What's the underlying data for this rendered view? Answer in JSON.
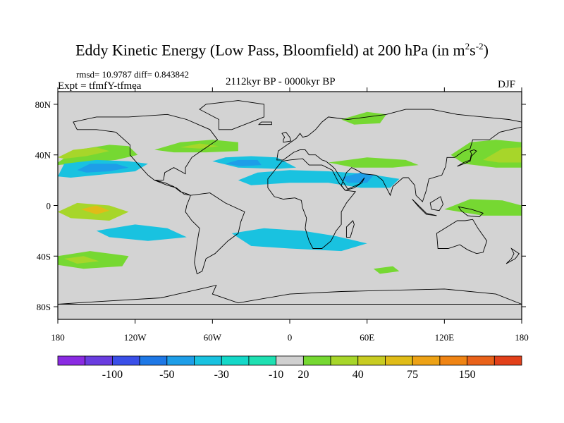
{
  "title": {
    "main": "Eddy Kinetic Energy (Low Pass, Bloomfield) at 200 hPa (in m",
    "unit_exp1": "2",
    "unit_mid": "s",
    "unit_exp2": "-2",
    "close": ")"
  },
  "stats": "rmsd= 10.9787 diff= 0.843842",
  "experiment": "Expt = tfmfY-tfmea",
  "period": "2112kyr BP - 0000kyr BP",
  "season": "DJF",
  "colors": {
    "background_field": "#d3d3d3",
    "land_outline": "#000000",
    "plot_border": "#000000"
  },
  "chart_data": {
    "type": "heatmap",
    "projection": "cylindrical equidistant",
    "variable": "Eddy Kinetic Energy difference",
    "xlim": [
      -180,
      180
    ],
    "ylim": [
      -90,
      90
    ],
    "x_ticks": [
      {
        "value": -180,
        "label": "180"
      },
      {
        "value": -120,
        "label": "120W"
      },
      {
        "value": -60,
        "label": "60W"
      },
      {
        "value": 0,
        "label": "0"
      },
      {
        "value": 60,
        "label": "60E"
      },
      {
        "value": 120,
        "label": "120E"
      },
      {
        "value": 180,
        "label": "180"
      }
    ],
    "y_ticks": [
      {
        "value": 80,
        "label": "80N"
      },
      {
        "value": 40,
        "label": "40N"
      },
      {
        "value": 0,
        "label": "0"
      },
      {
        "value": -40,
        "label": "40S"
      },
      {
        "value": -80,
        "label": "80S"
      }
    ],
    "colorbar": {
      "colors": [
        "#8a2be2",
        "#6a3de0",
        "#3a4fe8",
        "#1e78e6",
        "#1e9ee8",
        "#19c2e0",
        "#14d8c8",
        "#1fe0b2",
        "#d0d0d0",
        "#76d832",
        "#a7d62a",
        "#c8cc22",
        "#e0bc18",
        "#eda216",
        "#ef8414",
        "#e9621a",
        "#e2401a"
      ],
      "labels": [
        {
          "boundary": 2,
          "text": "-100"
        },
        {
          "boundary": 4,
          "text": "-50"
        },
        {
          "boundary": 6,
          "text": "-30"
        },
        {
          "boundary": 8,
          "text": "-10"
        },
        {
          "boundary": 9,
          "text": "20"
        },
        {
          "boundary": 11,
          "text": "40"
        },
        {
          "boundary": 13,
          "text": "75"
        },
        {
          "boundary": 15,
          "text": "150"
        }
      ]
    },
    "regions": [
      {
        "name": "north-pacific-positive",
        "color": "#76d832",
        "lon": [
          [
            -180,
            34
          ],
          [
            -165,
            44
          ],
          [
            -140,
            48
          ],
          [
            -125,
            47
          ],
          [
            -118,
            40
          ],
          [
            -135,
            36
          ],
          [
            -160,
            34
          ],
          [
            -180,
            32
          ]
        ]
      },
      {
        "name": "north-pacific-core",
        "color": "#a7d62a",
        "lon": [
          [
            -180,
            38
          ],
          [
            -168,
            44
          ],
          [
            -150,
            46
          ],
          [
            -140,
            43
          ],
          [
            -158,
            39
          ],
          [
            -175,
            37
          ]
        ]
      },
      {
        "name": "subtropical-pacific-negative",
        "color": "#19c2e0",
        "lon": [
          [
            -180,
            23
          ],
          [
            -175,
            33
          ],
          [
            -150,
            36
          ],
          [
            -125,
            35
          ],
          [
            -110,
            33
          ],
          [
            -120,
            27
          ],
          [
            -150,
            24
          ],
          [
            -170,
            22
          ]
        ]
      },
      {
        "name": "subtropical-pacific-core",
        "color": "#1e9ee8",
        "lon": [
          [
            -165,
            28
          ],
          [
            -155,
            33
          ],
          [
            -135,
            33
          ],
          [
            -125,
            30
          ],
          [
            -140,
            27
          ],
          [
            -158,
            26
          ]
        ]
      },
      {
        "name": "north-atlantic-positive",
        "color": "#76d832",
        "lon": [
          [
            -105,
            44
          ],
          [
            -85,
            50
          ],
          [
            -60,
            52
          ],
          [
            -40,
            50
          ],
          [
            -40,
            43
          ],
          [
            -65,
            42
          ],
          [
            -90,
            42
          ]
        ]
      },
      {
        "name": "north-atlantic-core",
        "color": "#a7d62a",
        "lon": [
          [
            -85,
            46
          ],
          [
            -70,
            49
          ],
          [
            -55,
            47
          ],
          [
            -70,
            45
          ]
        ]
      },
      {
        "name": "midlat-atlantic-negative",
        "color": "#19c2e0",
        "lon": [
          [
            -60,
            35
          ],
          [
            -50,
            38
          ],
          [
            -30,
            39
          ],
          [
            -10,
            38
          ],
          [
            5,
            30
          ],
          [
            -10,
            29
          ],
          [
            -40,
            30
          ]
        ]
      },
      {
        "name": "midlat-atlantic-core",
        "color": "#1e9ee8",
        "lon": [
          [
            -50,
            33
          ],
          [
            -40,
            36
          ],
          [
            -25,
            36
          ],
          [
            -22,
            32
          ],
          [
            -38,
            31
          ]
        ]
      },
      {
        "name": "african-jet-negative",
        "color": "#19c2e0",
        "lon": [
          [
            -40,
            20
          ],
          [
            -25,
            26
          ],
          [
            0,
            28
          ],
          [
            30,
            27
          ],
          [
            60,
            25
          ],
          [
            85,
            21
          ],
          [
            78,
            14
          ],
          [
            55,
            14
          ],
          [
            30,
            18
          ],
          [
            0,
            18
          ],
          [
            -30,
            16
          ]
        ]
      },
      {
        "name": "arabian-core",
        "color": "#1e9ee8",
        "lon": [
          [
            40,
            22
          ],
          [
            55,
            26
          ],
          [
            65,
            24
          ],
          [
            60,
            18
          ],
          [
            45,
            18
          ]
        ]
      },
      {
        "name": "asian-jet-positive",
        "color": "#76d832",
        "lon": [
          [
            30,
            34
          ],
          [
            60,
            38
          ],
          [
            90,
            36
          ],
          [
            100,
            32
          ],
          [
            80,
            30
          ],
          [
            50,
            30
          ]
        ]
      },
      {
        "name": "west-pacific-positive",
        "color": "#76d832",
        "lon": [
          [
            125,
            40
          ],
          [
            140,
            50
          ],
          [
            160,
            52
          ],
          [
            180,
            50
          ],
          [
            180,
            30
          ],
          [
            160,
            30
          ],
          [
            135,
            33
          ]
        ]
      },
      {
        "name": "west-pacific-core",
        "color": "#a7d62a",
        "lon": [
          [
            150,
            36
          ],
          [
            165,
            45
          ],
          [
            180,
            46
          ],
          [
            180,
            34
          ],
          [
            162,
            34
          ]
        ]
      },
      {
        "name": "arctic-positive",
        "color": "#76d832",
        "lon": [
          [
            40,
            68
          ],
          [
            60,
            74
          ],
          [
            75,
            72
          ],
          [
            70,
            65
          ],
          [
            50,
            64
          ]
        ]
      },
      {
        "name": "tropical-pacific-positive",
        "color": "#a7d62a",
        "lon": [
          [
            -180,
            -5
          ],
          [
            -165,
            2
          ],
          [
            -140,
            0
          ],
          [
            -125,
            -5
          ],
          [
            -140,
            -12
          ],
          [
            -170,
            -10
          ]
        ]
      },
      {
        "name": "tropical-pacific-core",
        "color": "#e0bc18",
        "lon": [
          [
            -162,
            -3
          ],
          [
            -150,
            0
          ],
          [
            -140,
            -4
          ],
          [
            -150,
            -7
          ]
        ]
      },
      {
        "name": "west-pacific-tropical-positive",
        "color": "#76d832",
        "lon": [
          [
            120,
            -3
          ],
          [
            140,
            5
          ],
          [
            165,
            4
          ],
          [
            180,
            0
          ],
          [
            180,
            -8
          ],
          [
            150,
            -8
          ]
        ]
      },
      {
        "name": "south-pacific-negative",
        "color": "#19c2e0",
        "lon": [
          [
            -150,
            -20
          ],
          [
            -120,
            -15
          ],
          [
            -95,
            -18
          ],
          [
            -80,
            -25
          ],
          [
            -110,
            -28
          ],
          [
            -140,
            -25
          ]
        ]
      },
      {
        "name": "south-atlantic-negative",
        "color": "#19c2e0",
        "lon": [
          [
            -45,
            -22
          ],
          [
            -20,
            -18
          ],
          [
            10,
            -20
          ],
          [
            35,
            -24
          ],
          [
            60,
            -30
          ],
          [
            40,
            -36
          ],
          [
            0,
            -34
          ],
          [
            -30,
            -32
          ]
        ]
      },
      {
        "name": "southern-ocean-positive",
        "color": "#76d832",
        "lon": [
          [
            -180,
            -40
          ],
          [
            -155,
            -36
          ],
          [
            -125,
            -40
          ],
          [
            -130,
            -48
          ],
          [
            -160,
            -50
          ],
          [
            -180,
            -47
          ]
        ]
      },
      {
        "name": "southern-ocean-core",
        "color": "#a7d62a",
        "lon": [
          [
            -175,
            -42
          ],
          [
            -160,
            -40
          ],
          [
            -148,
            -44
          ],
          [
            -165,
            -46
          ]
        ]
      },
      {
        "name": "south-indian-positive",
        "color": "#76d832",
        "lon": [
          [
            65,
            -50
          ],
          [
            80,
            -48
          ],
          [
            85,
            -52
          ],
          [
            70,
            -54
          ]
        ]
      }
    ]
  }
}
